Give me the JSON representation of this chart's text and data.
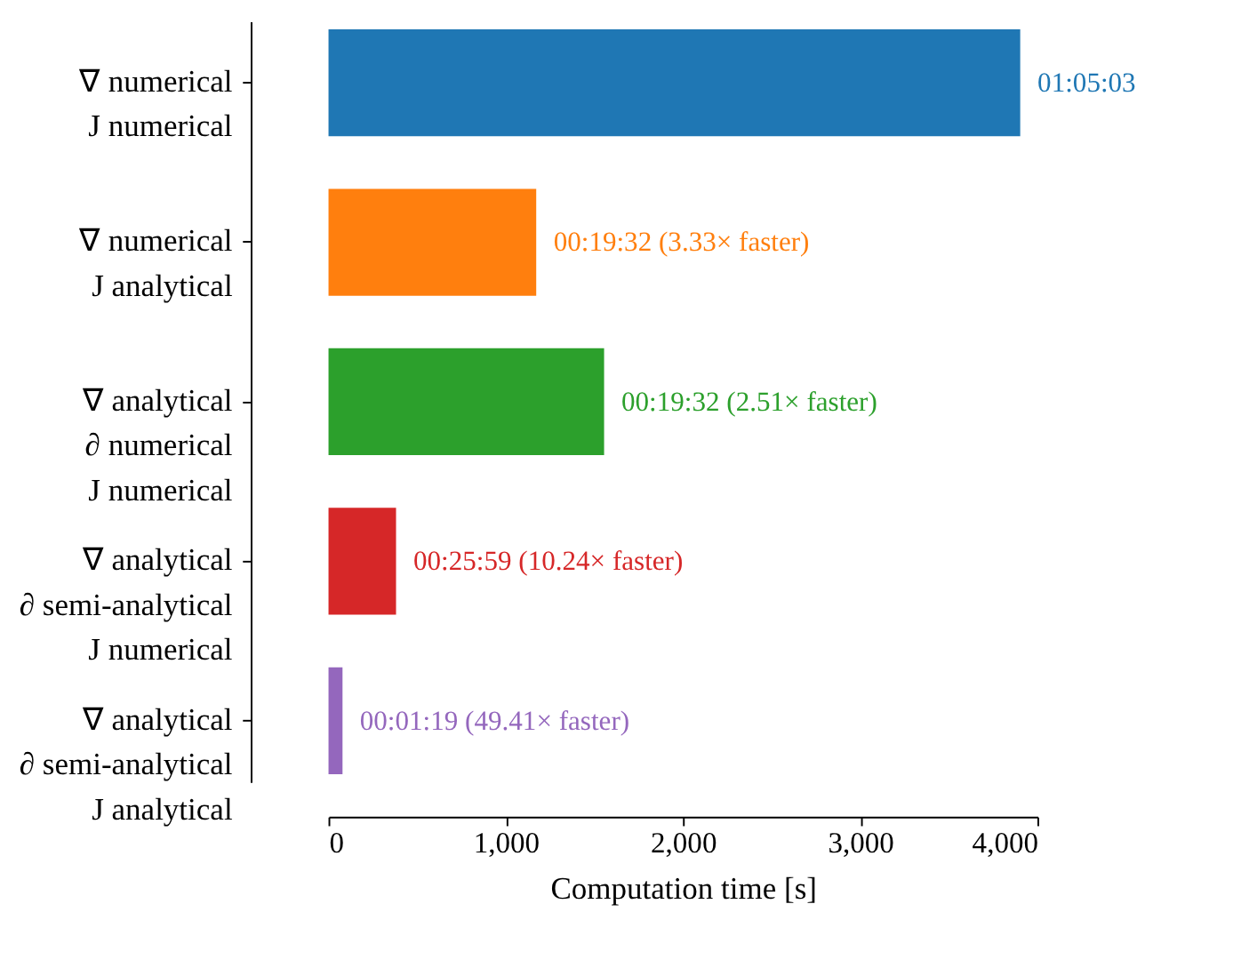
{
  "chart_data": {
    "type": "bar",
    "orientation": "horizontal",
    "xlabel": "Computation time [s]",
    "categories": [
      "∇ numerical\nJ numerical",
      "∇ numerical\nJ analytical",
      "∇ analytical\n∂ numerical\nJ numerical",
      "∇ analytical\n∂ semi-analytical\nJ numerical",
      "∇ analytical\n∂ semi-analytical\nJ analytical"
    ],
    "values": [
      3903,
      1172,
      1555,
      381,
      79
    ],
    "colors": [
      "#1f77b4",
      "#ff7f0e",
      "#2ca02c",
      "#d62728",
      "#9467bd"
    ],
    "value_labels": [
      "01:05:03",
      "00:19:32 (3.33× faster)",
      "00:19:32 (2.51× faster)",
      "00:25:59 (10.24× faster)",
      "00:01:19 (49.41× faster)"
    ],
    "xlim": [
      0,
      4000
    ],
    "xticks": [
      {
        "value": 0,
        "label": "0"
      },
      {
        "value": 1000,
        "label": "1,000"
      },
      {
        "value": 2000,
        "label": "2,000"
      },
      {
        "value": 3000,
        "label": "3,000"
      },
      {
        "value": 4000,
        "label": "4,000"
      }
    ]
  }
}
